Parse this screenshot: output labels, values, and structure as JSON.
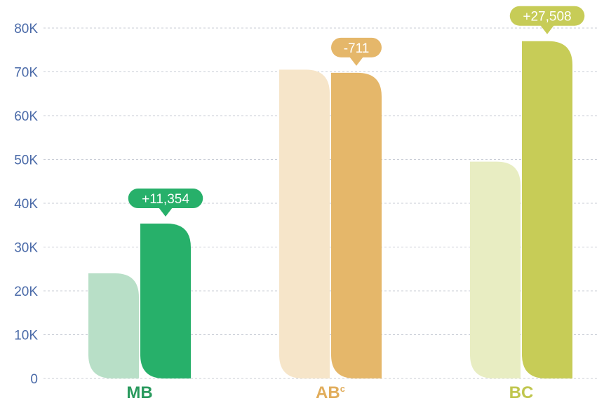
{
  "chart_data": {
    "type": "bar",
    "categories": [
      "MB",
      "AB",
      "BC"
    ],
    "category_superscripts": [
      "",
      "c",
      ""
    ],
    "series": [
      {
        "values": [
          24000,
          70500,
          49500
        ]
      },
      {
        "values": [
          35354,
          69789,
          77008
        ]
      }
    ],
    "change_labels": [
      "+11,354",
      "-711",
      "+27,508"
    ],
    "ylim": [
      0,
      80000
    ],
    "yticks": [
      0,
      10000,
      20000,
      30000,
      40000,
      50000,
      60000,
      70000,
      80000
    ],
    "ytick_labels": [
      "0",
      "10K",
      "20K",
      "30K",
      "40K",
      "50K",
      "60K",
      "70K",
      "80K"
    ],
    "grid": true,
    "colors": {
      "category_light": [
        "#b8dfc7",
        "#f6e5c9",
        "#e8edc2"
      ],
      "category_dark": [
        "#27b06a",
        "#e5b76a",
        "#c7cc57"
      ],
      "category_label": [
        "#2a9a5e",
        "#e1ad5c",
        "#c0c64e"
      ],
      "axis_text": "#4a6aa8"
    }
  }
}
